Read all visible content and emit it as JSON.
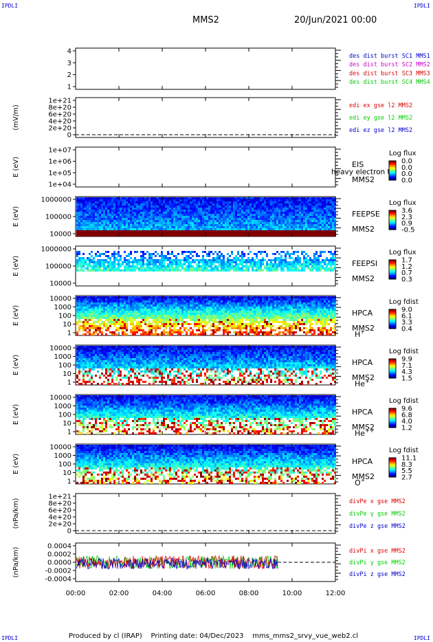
{
  "header": {
    "corner_left": "IPDLI",
    "corner_right": "IPDLI",
    "title": "MMS2",
    "date": "20/Jun/2021 00:00",
    "footer_left": "IPDLI",
    "footer_right": "IPDLI",
    "footer": "Produced by cl (IRAP)    Printing date: 04/Dec/2023    mms_mms2_srvy_vue_web2.cl"
  },
  "colors": {
    "blue": "#0000cc",
    "magenta": "#cc00cc",
    "red": "#dd0000",
    "green": "#00cc00"
  },
  "chart_data": {
    "type": "heatmap",
    "xlim": [
      "00:00",
      "12:00"
    ],
    "x_ticks": [
      "00:00",
      "02:00",
      "04:00",
      "06:00",
      "08:00",
      "10:00",
      "12:00"
    ],
    "panels": [
      {
        "kind": "line",
        "y_ticks": [
          "4",
          "3",
          "2",
          "1"
        ],
        "ylim": [
          0.5,
          4.5
        ],
        "legend": [
          {
            "text": "des dist burst SC1 MMS1",
            "color": "#0000cc"
          },
          {
            "text": "des dist burst SC2 MMS2",
            "color": "#cc00cc"
          },
          {
            "text": "des dist burst SC3 MMS3",
            "color": "#dd0000"
          },
          {
            "text": "des dist burst SC4 MMS4",
            "color": "#00cc00"
          }
        ]
      },
      {
        "kind": "line",
        "ylabel": "(mV/m)",
        "y_ticks": [
          "1e+21",
          "8e+20",
          "6e+20",
          "4e+20",
          "2e+20",
          "0"
        ],
        "ylim": [
          0,
          1e+21
        ],
        "zero_line": true,
        "legend": [
          {
            "text": "edi ex gse l2 MMS2",
            "color": "#dd0000"
          },
          {
            "text": "edi ey gse l2 MMS2",
            "color": "#00cc00"
          },
          {
            "text": "edi ez gse l2 MMS2",
            "color": "#0000cc"
          }
        ]
      },
      {
        "kind": "spectrogram",
        "ylabel": "E (eV)",
        "y_ticks": [
          "1e+07",
          "1e+06",
          "1e+05",
          "1e+04"
        ],
        "side_labels": [
          "EIS",
          "MMS2"
        ],
        "overlay_text": "heavy electron to",
        "colorbar": {
          "title": "Log flux",
          "ticks": [
            "0.0",
            "0.0",
            "0.0",
            "0.0"
          ]
        },
        "empty": true
      },
      {
        "kind": "spectrogram",
        "ylabel": "E (eV)",
        "y_ticks": [
          "1000000",
          "100000",
          "10000"
        ],
        "side_labels": [
          "FEEPSE",
          "MMS2"
        ],
        "colorbar": {
          "title": "Log flux",
          "ticks": [
            "3.6",
            "2.3",
            "0.9",
            "-0.5"
          ]
        },
        "stop_time": "12:00"
      },
      {
        "kind": "spectrogram",
        "ylabel": "E (eV)",
        "y_ticks": [
          "1000000",
          "100000",
          "10000"
        ],
        "side_labels": [
          "FEEPSI",
          "MMS2"
        ],
        "colorbar": {
          "title": "Log flux",
          "ticks": [
            "1.7",
            "1.2",
            "0.7",
            "0.3"
          ]
        },
        "stop_time": "12:00"
      },
      {
        "kind": "spectrogram",
        "ylabel": "E (eV)",
        "y_ticks": [
          "10000",
          "1000",
          "100",
          "10",
          "1"
        ],
        "side_labels": [
          "HPCA",
          "MMS2"
        ],
        "species": "H",
        "species_sup": "+",
        "colorbar": {
          "title": "Log fdist",
          "ticks": [
            "9.0",
            "6.1",
            "3.3",
            "0.4"
          ]
        },
        "stop_time": "12:00"
      },
      {
        "kind": "spectrogram",
        "ylabel": "E (eV)",
        "y_ticks": [
          "10000",
          "1000",
          "100",
          "10",
          "1"
        ],
        "side_labels": [
          "HPCA",
          "MMS2"
        ],
        "species": "He",
        "species_sup": "+",
        "colorbar": {
          "title": "Log fdist",
          "ticks": [
            "9.9",
            "7.1",
            "4.3",
            "1.5"
          ]
        },
        "stop_time": "12:00"
      },
      {
        "kind": "spectrogram",
        "ylabel": "E (eV)",
        "y_ticks": [
          "10000",
          "1000",
          "100",
          "10",
          "1"
        ],
        "side_labels": [
          "HPCA",
          "MMS2"
        ],
        "species": "He",
        "species_sup": "++",
        "colorbar": {
          "title": "Log fdist",
          "ticks": [
            "9.6",
            "6.8",
            "4.0",
            "1.2"
          ]
        },
        "stop_time": "12:00"
      },
      {
        "kind": "spectrogram",
        "ylabel": "E (eV)",
        "y_ticks": [
          "10000",
          "1000",
          "100",
          "10",
          "1"
        ],
        "side_labels": [
          "HPCA",
          "MMS2"
        ],
        "species": "O",
        "species_sup": "+",
        "colorbar": {
          "title": "Log fdist",
          "ticks": [
            "11.1",
            "8.3",
            "5.5",
            "2.7"
          ]
        },
        "stop_time": "12:00"
      },
      {
        "kind": "line",
        "ylabel": "(nPa/km)",
        "y_ticks": [
          "1e+21",
          "8e+20",
          "6e+20",
          "4e+20",
          "2e+20",
          "0"
        ],
        "ylim": [
          0,
          1e+21
        ],
        "zero_line": true,
        "legend": [
          {
            "text": "divPe x gse MMS2",
            "color": "#dd0000"
          },
          {
            "text": "divPe y gse MMS2",
            "color": "#00cc00"
          },
          {
            "text": "divPe z gse MMS2",
            "color": "#0000cc"
          }
        ]
      },
      {
        "kind": "line",
        "ylabel": "(nPa/km)",
        "y_ticks": [
          "0.0004",
          "0.0002",
          "0.0000",
          "-0.0002",
          "-0.0004"
        ],
        "ylim": [
          -0.0005,
          0.0005
        ],
        "noise_end_time": "09:20",
        "dashed_from_time": "09:20",
        "legend": [
          {
            "text": "divPi x gse MMS2",
            "color": "#dd0000"
          },
          {
            "text": "divPi y gse MMS2",
            "color": "#00cc00"
          },
          {
            "text": "divPi z gse MMS2",
            "color": "#0000cc"
          }
        ]
      }
    ]
  }
}
